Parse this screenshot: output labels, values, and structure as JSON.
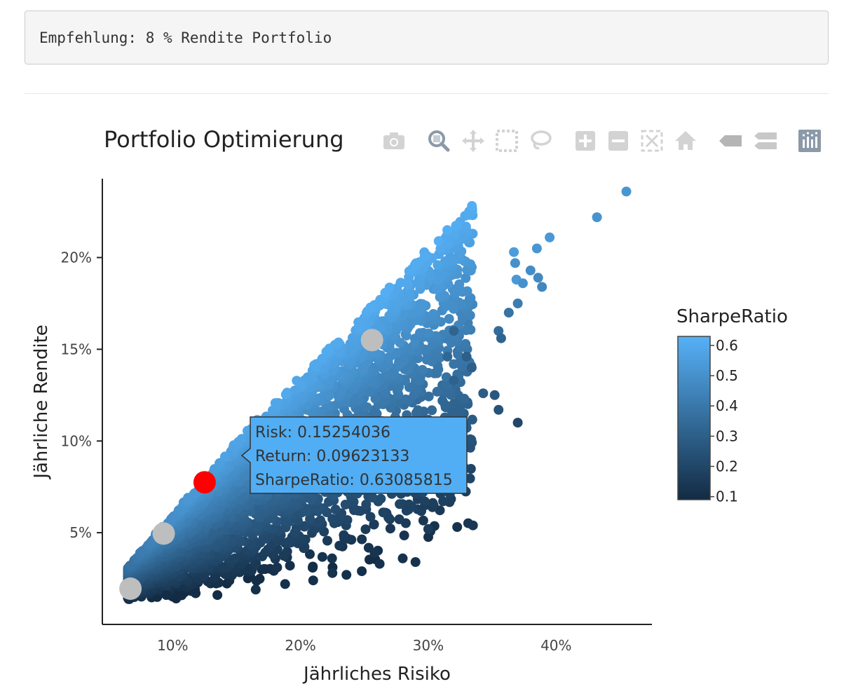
{
  "output": {
    "text": "Empfehlung: 8 % Rendite Portfolio"
  },
  "colors": {
    "colorscale_low": "#132b43",
    "colorscale_high": "#56b1f7",
    "highlight": "#ff0000",
    "marker_gray": "#bebebe",
    "tooltip_bg": "#51aef4",
    "modebar_icon": "#d3d3d3",
    "modebar_active": "#8b99a8"
  },
  "modebar": {
    "buttons": [
      "camera-icon",
      "zoom-icon",
      "pan-icon",
      "box-select-icon",
      "lasso-icon",
      "zoom-in-icon",
      "zoom-out-icon",
      "autoscale-icon",
      "home-icon",
      "spike-lines-icon",
      "compare-hover-icon",
      "plotly-logo-icon"
    ]
  },
  "chart_data": {
    "type": "scatter",
    "title": "Portfolio Optimierung",
    "xlabel": "Jährliches Risiko",
    "ylabel": "Jährliche Rendite",
    "xlim": [
      0.045,
      0.475
    ],
    "ylim": [
      0.0,
      0.243
    ],
    "xticks": [
      {
        "value": 0.1,
        "label": "10%"
      },
      {
        "value": 0.2,
        "label": "20%"
      },
      {
        "value": 0.3,
        "label": "30%"
      },
      {
        "value": 0.4,
        "label": "40%"
      }
    ],
    "yticks": [
      {
        "value": 0.05,
        "label": "5%"
      },
      {
        "value": 0.1,
        "label": "10%"
      },
      {
        "value": 0.15,
        "label": "15%"
      },
      {
        "value": 0.2,
        "label": "20%"
      }
    ],
    "grid": false,
    "colorbar": {
      "title": "SharpeRatio",
      "range": [
        0.09,
        0.63
      ],
      "ticks": [
        {
          "value": 0.1,
          "label": "0.1"
        },
        {
          "value": 0.2,
          "label": "0.2"
        },
        {
          "value": 0.3,
          "label": "0.3"
        },
        {
          "value": 0.4,
          "label": "0.4"
        },
        {
          "value": 0.5,
          "label": "0.5"
        },
        {
          "value": 0.6,
          "label": "0.6"
        }
      ]
    },
    "outliers": [
      {
        "x": 0.455,
        "y": 0.236,
        "sharpe": 0.52
      },
      {
        "x": 0.432,
        "y": 0.222,
        "sharpe": 0.51
      },
      {
        "x": 0.395,
        "y": 0.211,
        "sharpe": 0.53
      },
      {
        "x": 0.385,
        "y": 0.205,
        "sharpe": 0.52
      },
      {
        "x": 0.367,
        "y": 0.203,
        "sharpe": 0.55
      },
      {
        "x": 0.368,
        "y": 0.197,
        "sharpe": 0.5
      },
      {
        "x": 0.38,
        "y": 0.193,
        "sharpe": 0.48
      },
      {
        "x": 0.369,
        "y": 0.188,
        "sharpe": 0.53
      },
      {
        "x": 0.374,
        "y": 0.186,
        "sharpe": 0.5
      },
      {
        "x": 0.386,
        "y": 0.189,
        "sharpe": 0.47
      },
      {
        "x": 0.389,
        "y": 0.184,
        "sharpe": 0.46
      },
      {
        "x": 0.37,
        "y": 0.175,
        "sharpe": 0.42
      },
      {
        "x": 0.363,
        "y": 0.17,
        "sharpe": 0.38
      },
      {
        "x": 0.355,
        "y": 0.16,
        "sharpe": 0.35
      },
      {
        "x": 0.357,
        "y": 0.156,
        "sharpe": 0.32
      },
      {
        "x": 0.32,
        "y": 0.16,
        "sharpe": 0.32
      },
      {
        "x": 0.315,
        "y": 0.146,
        "sharpe": 0.33
      },
      {
        "x": 0.33,
        "y": 0.146,
        "sharpe": 0.3
      },
      {
        "x": 0.334,
        "y": 0.14,
        "sharpe": 0.3
      },
      {
        "x": 0.32,
        "y": 0.133,
        "sharpe": 0.31
      },
      {
        "x": 0.343,
        "y": 0.126,
        "sharpe": 0.29
      },
      {
        "x": 0.352,
        "y": 0.125,
        "sharpe": 0.27
      },
      {
        "x": 0.355,
        "y": 0.117,
        "sharpe": 0.25
      },
      {
        "x": 0.37,
        "y": 0.11,
        "sharpe": 0.2
      },
      {
        "x": 0.335,
        "y": 0.054,
        "sharpe": 0.14
      },
      {
        "x": 0.3,
        "y": 0.052,
        "sharpe": 0.16
      },
      {
        "x": 0.283,
        "y": 0.062,
        "sharpe": 0.18
      },
      {
        "x": 0.29,
        "y": 0.034,
        "sharpe": 0.12
      },
      {
        "x": 0.28,
        "y": 0.036,
        "sharpe": 0.12
      },
      {
        "x": 0.258,
        "y": 0.039,
        "sharpe": 0.13
      },
      {
        "x": 0.262,
        "y": 0.033,
        "sharpe": 0.12
      },
      {
        "x": 0.248,
        "y": 0.029,
        "sharpe": 0.11
      },
      {
        "x": 0.236,
        "y": 0.027,
        "sharpe": 0.11
      },
      {
        "x": 0.225,
        "y": 0.028,
        "sharpe": 0.12
      },
      {
        "x": 0.21,
        "y": 0.024,
        "sharpe": 0.11
      },
      {
        "x": 0.188,
        "y": 0.022,
        "sharpe": 0.11
      },
      {
        "x": 0.165,
        "y": 0.019,
        "sharpe": 0.11
      },
      {
        "x": 0.135,
        "y": 0.016,
        "sharpe": 0.1
      },
      {
        "x": 0.118,
        "y": 0.017,
        "sharpe": 0.1
      },
      {
        "x": 0.095,
        "y": 0.016,
        "sharpe": 0.1
      }
    ],
    "special_points": [
      {
        "x": 0.125,
        "y": 0.0775,
        "role": "selected",
        "color": "#ff0000"
      },
      {
        "x": 0.256,
        "y": 0.155,
        "role": "reference",
        "color": "#bebebe"
      },
      {
        "x": 0.093,
        "y": 0.0495,
        "role": "reference",
        "color": "#bebebe"
      },
      {
        "x": 0.067,
        "y": 0.0195,
        "role": "reference",
        "color": "#bebebe"
      }
    ],
    "hover": {
      "x": 0.15254036,
      "y": 0.09623133,
      "sharpe": 0.63085815,
      "lines": [
        "Risk: 0.15254036",
        "Return: 0.09623133",
        "SharpeRatio: 0.63085815"
      ]
    }
  }
}
